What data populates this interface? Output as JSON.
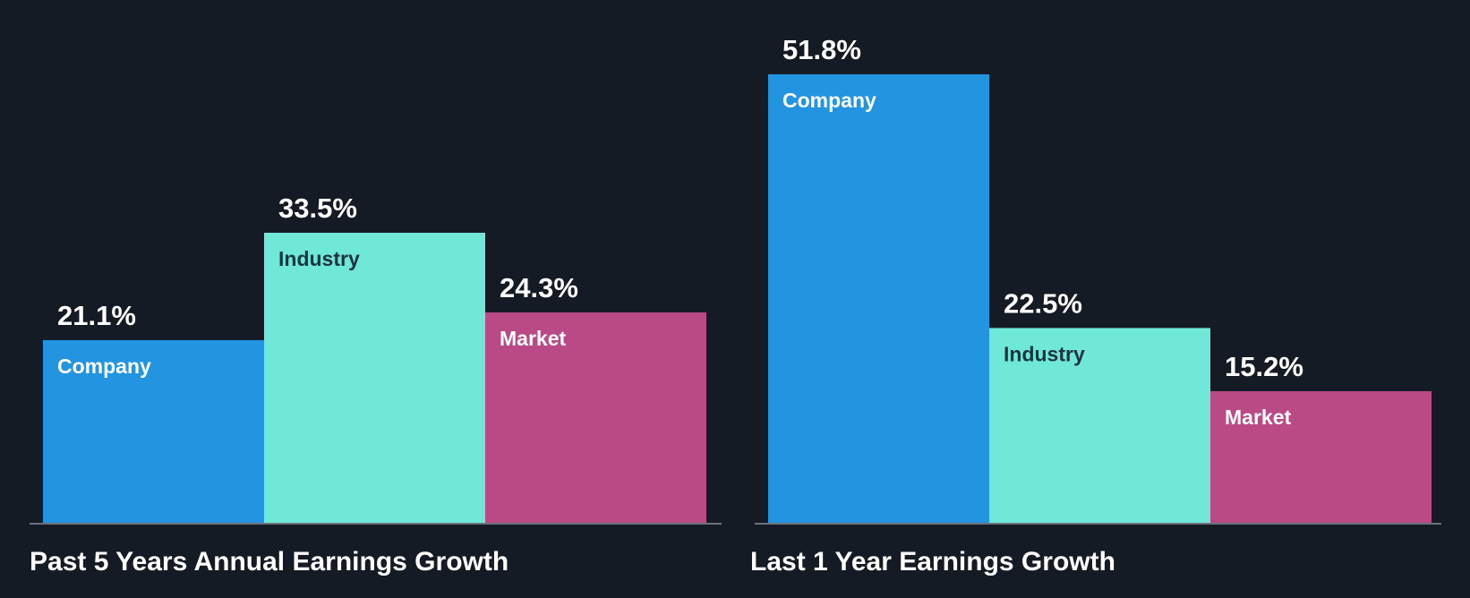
{
  "chart_data": [
    {
      "type": "bar",
      "title": "Past 5 Years Annual Earnings Growth",
      "categories": [
        "Company",
        "Industry",
        "Market"
      ],
      "values": [
        21.1,
        33.5,
        24.3
      ],
      "value_labels": [
        "21.1%",
        "33.5%",
        "24.3%"
      ],
      "ylim": [
        0,
        51.8
      ],
      "grid": false,
      "legend": "none"
    },
    {
      "type": "bar",
      "title": "Last 1 Year Earnings Growth",
      "categories": [
        "Company",
        "Industry",
        "Market"
      ],
      "values": [
        51.8,
        22.5,
        15.2
      ],
      "value_labels": [
        "51.8%",
        "22.5%",
        "15.2%"
      ],
      "ylim": [
        0,
        51.8
      ],
      "grid": false,
      "legend": "none"
    }
  ],
  "colors": {
    "background": "#151b24",
    "bars": [
      "#2394df",
      "#6fe8d7",
      "#ba4a86"
    ],
    "category_text": [
      "#ffffff",
      "#1d3340",
      "#ffffff"
    ],
    "axis": "#8a8f98",
    "text": "#ffffff"
  }
}
